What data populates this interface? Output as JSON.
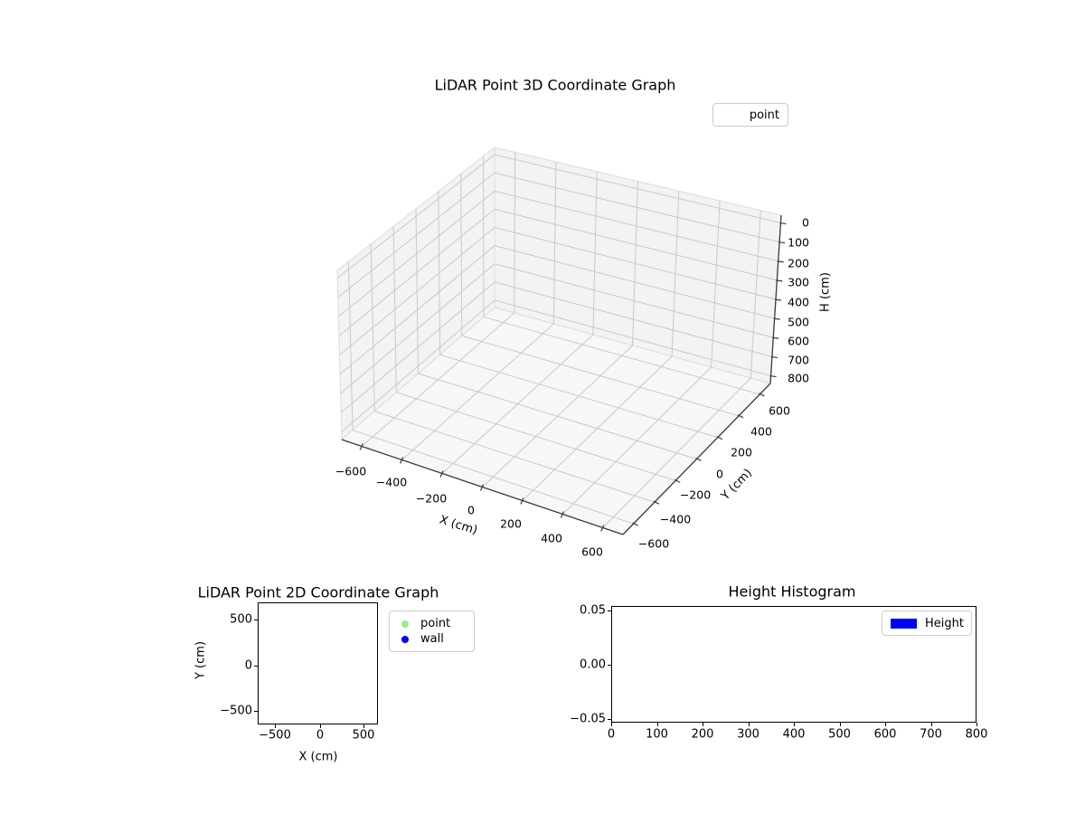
{
  "figure": {
    "background": "#ffffff"
  },
  "plot3d": {
    "title": "LiDAR Point 3D Coordinate Graph",
    "legend": {
      "label": "point"
    },
    "xlabel": "X (cm)",
    "ylabel": "Y (cm)",
    "zlabel": "H (cm)",
    "x_tick_labels": [
      "−600",
      "−400",
      "−200",
      "0",
      "200",
      "400",
      "600"
    ],
    "y_tick_labels": [
      "−600",
      "−400",
      "−200",
      "0",
      "200",
      "400",
      "600"
    ],
    "z_tick_labels": [
      "0",
      "100",
      "200",
      "300",
      "400",
      "500",
      "600",
      "700",
      "800"
    ]
  },
  "plot2d": {
    "title": "LiDAR Point 2D Coordinate Graph",
    "xlabel": "X (cm)",
    "ylabel": "Y (cm)",
    "x_tick_labels": [
      "−500",
      "0",
      "500"
    ],
    "y_tick_labels": [
      "500",
      "0",
      "−500"
    ],
    "legend": [
      {
        "label": "point",
        "color": "#90ee90"
      },
      {
        "label": "wall",
        "color": "#0000ff"
      }
    ]
  },
  "histogram": {
    "title": "Height Histogram",
    "x_tick_labels": [
      "0",
      "100",
      "200",
      "300",
      "400",
      "500",
      "600",
      "700",
      "800"
    ],
    "y_tick_labels": [
      "0.05",
      "0.00",
      "−0.05"
    ],
    "legend": [
      {
        "label": "Height",
        "color": "#0000ff"
      }
    ]
  },
  "chart_data": [
    {
      "type": "scatter",
      "projection": "3d",
      "title": "LiDAR Point 3D Coordinate Graph",
      "xlabel": "X (cm)",
      "ylabel": "Y (cm)",
      "zlabel": "H (cm)",
      "xlim": [
        -700,
        700
      ],
      "ylim": [
        -700,
        700
      ],
      "zlim": [
        0,
        800
      ],
      "zaxis_inverted": true,
      "xticks": [
        -600,
        -400,
        -200,
        0,
        200,
        400,
        600
      ],
      "yticks": [
        -600,
        -400,
        -200,
        0,
        200,
        400,
        600
      ],
      "zticks": [
        0,
        100,
        200,
        300,
        400,
        500,
        600,
        700,
        800
      ],
      "grid": true,
      "legend_position": "upper right",
      "series": [
        {
          "name": "point",
          "points": []
        }
      ]
    },
    {
      "type": "scatter",
      "title": "LiDAR Point 2D Coordinate Graph",
      "xlabel": "X (cm)",
      "ylabel": "Y (cm)",
      "xlim": [
        -700,
        700
      ],
      "ylim": [
        -700,
        700
      ],
      "xticks": [
        -500,
        0,
        500
      ],
      "yticks": [
        -500,
        0,
        500
      ],
      "grid": false,
      "legend_position": "outside upper right",
      "series": [
        {
          "name": "point",
          "color": "#90ee90",
          "points": []
        },
        {
          "name": "wall",
          "color": "#0000ff",
          "points": []
        }
      ]
    },
    {
      "type": "bar",
      "title": "Height Histogram",
      "xlabel": "",
      "ylabel": "",
      "xlim": [
        0,
        810
      ],
      "ylim": [
        -0.055,
        0.055
      ],
      "xticks": [
        0,
        100,
        200,
        300,
        400,
        500,
        600,
        700,
        800
      ],
      "yticks": [
        -0.05,
        0.0,
        0.05
      ],
      "grid": false,
      "legend_position": "upper right",
      "series": [
        {
          "name": "Height",
          "color": "#0000ff",
          "values": []
        }
      ]
    }
  ]
}
